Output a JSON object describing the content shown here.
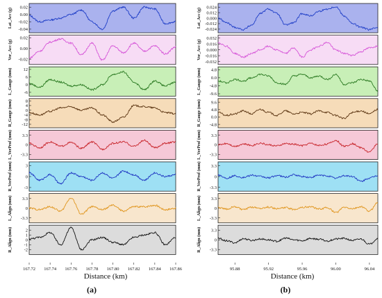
{
  "figure": {
    "panel_a_label": "(a)",
    "panel_b_label": "(b)",
    "xlabel_a": "Distance (km)",
    "xlabel_b": "Distance (km)"
  },
  "chart_data": [
    {
      "type": "line",
      "panel": "a",
      "subplot": 1,
      "ylabel": "Lat_Acc (g)",
      "background": "#aab2ee",
      "line_color": "#1f3ec7",
      "xlim": [
        167.72,
        167.86
      ],
      "ylim": [
        -0.05,
        0.03
      ],
      "yticks": [
        "0.02",
        "0.00",
        "-0.02",
        "-0.04"
      ],
      "ytick_values": [
        0.02,
        0.0,
        -0.02,
        -0.04
      ],
      "x": [
        167.72,
        167.73,
        167.74,
        167.75,
        167.76,
        167.77,
        167.78,
        167.79,
        167.8,
        167.81,
        167.82,
        167.83,
        167.84,
        167.85,
        167.86
      ],
      "y": [
        -0.003,
        -0.02,
        -0.015,
        -0.01,
        0.0,
        0.012,
        -0.02,
        -0.04,
        0.01,
        0.02,
        -0.01,
        0.02,
        0.015,
        -0.025,
        -0.02
      ]
    },
    {
      "type": "line",
      "panel": "a",
      "subplot": 2,
      "ylabel": "Ver_Acc (g)",
      "background": "#f7dcf5",
      "line_color": "#d655d8",
      "xlim": [
        167.72,
        167.86
      ],
      "ylim": [
        -0.03,
        0.025
      ],
      "yticks": [
        "0.02",
        "0.00",
        "-0.02"
      ],
      "ytick_values": [
        0.02,
        0.0,
        -0.02
      ],
      "x": [
        167.72,
        167.73,
        167.74,
        167.75,
        167.76,
        167.77,
        167.78,
        167.79,
        167.8,
        167.81,
        167.82,
        167.83,
        167.84,
        167.85,
        167.86
      ],
      "y": [
        -0.018,
        -0.005,
        0.012,
        0.018,
        0.01,
        -0.012,
        0.01,
        -0.022,
        0.005,
        -0.008,
        0.01,
        -0.005,
        0.005,
        -0.01,
        0.003
      ]
    },
    {
      "type": "line",
      "panel": "a",
      "subplot": 3,
      "ylabel": "L_Gauge (mm)",
      "background": "#c8efb7",
      "line_color": "#2b7a22",
      "xlim": [
        167.72,
        167.86
      ],
      "ylim": [
        -9,
        14
      ],
      "yticks": [
        "12",
        "6",
        "0",
        "-6"
      ],
      "ytick_values": [
        12,
        6,
        0,
        -6
      ],
      "x": [
        167.72,
        167.73,
        167.74,
        167.75,
        167.76,
        167.77,
        167.78,
        167.79,
        167.8,
        167.81,
        167.82,
        167.83,
        167.84,
        167.85,
        167.86
      ],
      "y": [
        1,
        -2,
        4,
        2,
        -1,
        0,
        -4,
        0,
        8,
        10,
        2,
        -4,
        3,
        -1,
        2
      ]
    },
    {
      "type": "line",
      "panel": "a",
      "subplot": 4,
      "ylabel": "R_Gauge (mm)",
      "background": "#f6dcb9",
      "line_color": "#5a3310",
      "xlim": [
        167.72,
        167.86
      ],
      "ylim": [
        -15,
        10
      ],
      "yticks": [
        "8",
        "4",
        "0",
        "-4",
        "-8",
        "-12"
      ],
      "ytick_values": [
        8,
        4,
        0,
        -4,
        -8,
        -12
      ],
      "x": [
        167.72,
        167.73,
        167.74,
        167.75,
        167.76,
        167.77,
        167.78,
        167.79,
        167.8,
        167.81,
        167.82,
        167.83,
        167.84,
        167.85,
        167.86
      ],
      "y": [
        -2,
        -4,
        -1,
        2,
        3,
        0,
        2,
        -4,
        -10,
        -6,
        4,
        3,
        2,
        -2,
        -3
      ]
    },
    {
      "type": "line",
      "panel": "a",
      "subplot": 5,
      "ylabel": "L_VerProf (mm)",
      "background": "#f6c8d7",
      "line_color": "#c8262c",
      "xlim": [
        167.72,
        167.86
      ],
      "ylim": [
        -5,
        5
      ],
      "yticks": [
        "3.3",
        "0",
        "-3.3"
      ],
      "ytick_values": [
        3.3,
        0,
        -3.3
      ],
      "x": [
        167.72,
        167.73,
        167.74,
        167.75,
        167.76,
        167.77,
        167.78,
        167.79,
        167.8,
        167.81,
        167.82,
        167.83,
        167.84,
        167.85,
        167.86
      ],
      "y": [
        0.5,
        -1,
        1,
        -0.5,
        0.8,
        -1.2,
        1,
        -1.5,
        0.5,
        1,
        -0.5,
        1.5,
        -1,
        0.5,
        1
      ]
    },
    {
      "type": "line",
      "panel": "a",
      "subplot": 6,
      "ylabel": "R_VerProf (mm)",
      "background": "#9ee0f4",
      "line_color": "#1f36c2",
      "xlim": [
        167.72,
        167.86
      ],
      "ylim": [
        -4,
        4
      ],
      "yticks": [
        "3",
        "0",
        "-3"
      ],
      "ytick_values": [
        3,
        0,
        -3
      ],
      "x": [
        167.72,
        167.73,
        167.74,
        167.75,
        167.76,
        167.77,
        167.78,
        167.79,
        167.8,
        167.81,
        167.82,
        167.83,
        167.84,
        167.85,
        167.86
      ],
      "y": [
        1,
        -1,
        0.5,
        -2,
        1,
        0,
        -1,
        1,
        -0.5,
        1.5,
        0.5,
        -1,
        1,
        0,
        0.5
      ]
    },
    {
      "type": "line",
      "panel": "a",
      "subplot": 7,
      "ylabel": "L_Align (mm)",
      "background": "#f8e6cd",
      "line_color": "#e0961f",
      "xlim": [
        167.72,
        167.86
      ],
      "ylim": [
        -5,
        5
      ],
      "yticks": [
        "3.3",
        "0",
        "-3.3"
      ],
      "ytick_values": [
        3.3,
        0,
        -3.3
      ],
      "x": [
        167.72,
        167.73,
        167.74,
        167.75,
        167.76,
        167.77,
        167.78,
        167.79,
        167.8,
        167.81,
        167.82,
        167.83,
        167.84,
        167.85,
        167.86
      ],
      "y": [
        0,
        -0.5,
        0.5,
        -1,
        3.5,
        -2,
        0.5,
        -0.5,
        1,
        -1,
        0.5,
        0.5,
        1,
        -0.5,
        0
      ]
    },
    {
      "type": "line",
      "panel": "a",
      "subplot": 8,
      "ylabel": "R_Align (mm)",
      "background": "#dcdcdc",
      "line_color": "#111111",
      "xlim": [
        167.72,
        167.86
      ],
      "ylim": [
        -3,
        3
      ],
      "yticks": [
        "2",
        "1",
        "0",
        "-1",
        "-2"
      ],
      "ytick_values": [
        2,
        1,
        0,
        -1,
        -2
      ],
      "x": [
        167.72,
        167.73,
        167.74,
        167.75,
        167.76,
        167.77,
        167.78,
        167.79,
        167.8,
        167.81,
        167.82,
        167.83,
        167.84,
        167.85,
        167.86
      ],
      "y": [
        0.2,
        0.5,
        1.5,
        -1,
        2.5,
        -2,
        0,
        0.5,
        -0.5,
        -1,
        0.5,
        1,
        1.5,
        -1,
        0.5
      ]
    },
    {
      "type": "line",
      "panel": "b",
      "subplot": 1,
      "ylabel": "Lat_Acc (g)",
      "background": "#aab2ee",
      "line_color": "#1f3ec7",
      "xlim": [
        95.86,
        96.05
      ],
      "ylim": [
        -0.032,
        0.032
      ],
      "yticks": [
        "0.024",
        "0.012",
        "0.000",
        "-0.012",
        "-0.024"
      ],
      "ytick_values": [
        0.024,
        0.012,
        0.0,
        -0.012,
        -0.024
      ],
      "x": [
        95.86,
        95.87,
        95.88,
        95.89,
        95.9,
        95.91,
        95.92,
        95.93,
        95.94,
        95.95,
        95.96,
        95.97,
        95.98,
        95.99,
        96.0,
        96.01,
        96.02,
        96.03,
        96.04,
        96.05
      ],
      "y": [
        0.0,
        -0.01,
        -0.02,
        -0.025,
        -0.015,
        0.01,
        0.02,
        0.01,
        -0.015,
        -0.01,
        0.01,
        0.005,
        0.015,
        0.02,
        0.025,
        0.005,
        -0.012,
        -0.02,
        -0.025,
        -0.02
      ]
    },
    {
      "type": "line",
      "panel": "b",
      "subplot": 2,
      "ylabel": "Ver_Acc (g)",
      "background": "#f7dcf5",
      "line_color": "#d655d8",
      "xlim": [
        95.86,
        96.05
      ],
      "ylim": [
        -0.04,
        0.04
      ],
      "yticks": [
        "0.032",
        "0.016",
        "0.000",
        "-0.016",
        "-0.032"
      ],
      "ytick_values": [
        0.032,
        0.016,
        0.0,
        -0.016,
        -0.032
      ],
      "x": [
        95.86,
        95.87,
        95.88,
        95.89,
        95.9,
        95.91,
        95.92,
        95.93,
        95.94,
        95.95,
        95.96,
        95.97,
        95.98,
        95.99,
        96.0,
        96.01,
        96.02,
        96.03,
        96.04,
        96.05
      ],
      "y": [
        0.02,
        0.01,
        -0.01,
        -0.02,
        -0.01,
        0.0,
        0.01,
        0.0,
        -0.01,
        0.005,
        -0.02,
        0.0,
        0.01,
        0.02,
        0.0,
        -0.01,
        -0.015,
        -0.005,
        0.005,
        0.01
      ]
    },
    {
      "type": "line",
      "panel": "b",
      "subplot": 3,
      "ylabel": "L_Gauge (mm)",
      "background": "#c8efb7",
      "line_color": "#2b7a22",
      "xlim": [
        95.86,
        96.05
      ],
      "ylim": [
        -11,
        6.5
      ],
      "yticks": [
        "4.8",
        "0.0",
        "-4.8",
        "-9.6"
      ],
      "ytick_values": [
        4.8,
        0.0,
        -4.8,
        -9.6
      ],
      "x": [
        95.86,
        95.87,
        95.88,
        95.89,
        95.9,
        95.91,
        95.92,
        95.93,
        95.94,
        95.95,
        95.96,
        95.97,
        95.98,
        95.99,
        96.0,
        96.01,
        96.02,
        96.03,
        96.04,
        96.05
      ],
      "y": [
        -2,
        -3,
        -1,
        -2,
        0,
        2,
        1,
        -3,
        -4,
        1,
        2,
        0,
        1,
        -1,
        2,
        -4,
        -3,
        -1,
        -2,
        -8
      ]
    },
    {
      "type": "line",
      "panel": "b",
      "subplot": 4,
      "ylabel": "R_Gauge (mm)",
      "background": "#f6dcb9",
      "line_color": "#5a3310",
      "xlim": [
        95.86,
        96.05
      ],
      "ylim": [
        -7,
        12
      ],
      "yticks": [
        "9.6",
        "4.8",
        "0.0",
        "-4.8"
      ],
      "ytick_values": [
        9.6,
        4.8,
        0.0,
        -4.8
      ],
      "x": [
        95.86,
        95.87,
        95.88,
        95.89,
        95.9,
        95.91,
        95.92,
        95.93,
        95.94,
        95.95,
        95.96,
        95.97,
        95.98,
        95.99,
        96.0,
        96.01,
        96.02,
        96.03,
        96.04,
        96.05
      ],
      "y": [
        3,
        1,
        2,
        4,
        2,
        5,
        3,
        1,
        4,
        2,
        3,
        2,
        4,
        3,
        1,
        -1,
        3,
        4,
        2,
        5
      ]
    },
    {
      "type": "line",
      "panel": "b",
      "subplot": 5,
      "ylabel": "L_VerProf (mm)",
      "background": "#f6c8d7",
      "line_color": "#c8262c",
      "xlim": [
        95.86,
        96.05
      ],
      "ylim": [
        -5,
        5
      ],
      "yticks": [
        "3.3",
        "0",
        "-3.3"
      ],
      "ytick_values": [
        3.3,
        0,
        -3.3
      ],
      "x": [
        95.86,
        95.87,
        95.88,
        95.89,
        95.9,
        95.91,
        95.92,
        95.93,
        95.94,
        95.95,
        95.96,
        95.97,
        95.98,
        95.99,
        96.0,
        96.01,
        96.02,
        96.03,
        96.04,
        96.05
      ],
      "y": [
        0,
        0.5,
        -0.5,
        0.3,
        -0.2,
        0.6,
        0,
        -0.4,
        0.4,
        0.2,
        -0.3,
        0.5,
        -0.2,
        0.3,
        1.5,
        -0.5,
        0.4,
        -1,
        -2.5,
        0.5
      ]
    },
    {
      "type": "line",
      "panel": "b",
      "subplot": 6,
      "ylabel": "R_VerProf (mm)",
      "background": "#9ee0f4",
      "line_color": "#1f36c2",
      "xlim": [
        95.86,
        96.05
      ],
      "ylim": [
        -4.5,
        4.5
      ],
      "yticks": [
        "3.3",
        "0",
        "-3.3"
      ],
      "ytick_values": [
        3.3,
        0,
        -3.3
      ],
      "x": [
        95.86,
        95.87,
        95.88,
        95.89,
        95.9,
        95.91,
        95.92,
        95.93,
        95.94,
        95.95,
        95.96,
        95.97,
        95.98,
        95.99,
        96.0,
        96.01,
        96.02,
        96.03,
        96.04,
        96.05
      ],
      "y": [
        0.5,
        -0.5,
        0.2,
        -0.3,
        0.4,
        0,
        -0.4,
        0.3,
        -0.2,
        0.5,
        0,
        -0.3,
        0.4,
        0.2,
        -0.5,
        0.3,
        0,
        -1.5,
        -0.5,
        0.3
      ]
    },
    {
      "type": "line",
      "panel": "b",
      "subplot": 7,
      "ylabel": "L_Align (mm)",
      "background": "#f8e6cd",
      "line_color": "#e0961f",
      "xlim": [
        95.86,
        96.05
      ],
      "ylim": [
        -5,
        5
      ],
      "yticks": [
        "3.3",
        "0",
        "-3.3"
      ],
      "ytick_values": [
        3.3,
        0,
        -3.3
      ],
      "x": [
        95.86,
        95.87,
        95.88,
        95.89,
        95.9,
        95.91,
        95.92,
        95.93,
        95.94,
        95.95,
        95.96,
        95.97,
        95.98,
        95.99,
        96.0,
        96.01,
        96.02,
        96.03,
        96.04,
        96.05
      ],
      "y": [
        0.2,
        -0.3,
        0.5,
        -0.5,
        0.3,
        0,
        0.4,
        -0.2,
        0.2,
        -0.4,
        0.3,
        0.5,
        -0.3,
        0.2,
        -1.5,
        0.3,
        -0.2,
        0.5,
        -1,
        2
      ]
    },
    {
      "type": "line",
      "panel": "b",
      "subplot": 8,
      "ylabel": "R_Align (mm)",
      "background": "#dcdcdc",
      "line_color": "#111111",
      "xlim": [
        95.86,
        96.05
      ],
      "ylim": [
        -5,
        5
      ],
      "yticks": [
        "3.3",
        "0",
        "-3.3"
      ],
      "ytick_values": [
        3.3,
        0,
        -3.3
      ],
      "x": [
        95.86,
        95.87,
        95.88,
        95.89,
        95.9,
        95.91,
        95.92,
        95.93,
        95.94,
        95.95,
        95.96,
        95.97,
        95.98,
        95.99,
        96.0,
        96.01,
        96.02,
        96.03,
        96.04,
        96.05
      ],
      "y": [
        0.5,
        -0.3,
        -1,
        0.4,
        -0.2,
        0.3,
        0,
        -0.5,
        0.6,
        0,
        -0.3,
        0.5,
        0.2,
        -0.4,
        0.3,
        0.5,
        -0.2,
        0.3,
        -1.5,
        0.5
      ]
    }
  ],
  "x_axis": {
    "a": {
      "ticks": [
        "167.72",
        "167.74",
        "167.76",
        "167.78",
        "167.80",
        "167.82",
        "167.84",
        "167.86"
      ],
      "values": [
        167.72,
        167.74,
        167.76,
        167.78,
        167.8,
        167.82,
        167.84,
        167.86
      ]
    },
    "b": {
      "ticks": [
        "95.88",
        "95.92",
        "95.96",
        "96.00",
        "96.04"
      ],
      "values": [
        95.88,
        95.92,
        95.96,
        96.0,
        96.04
      ]
    }
  }
}
